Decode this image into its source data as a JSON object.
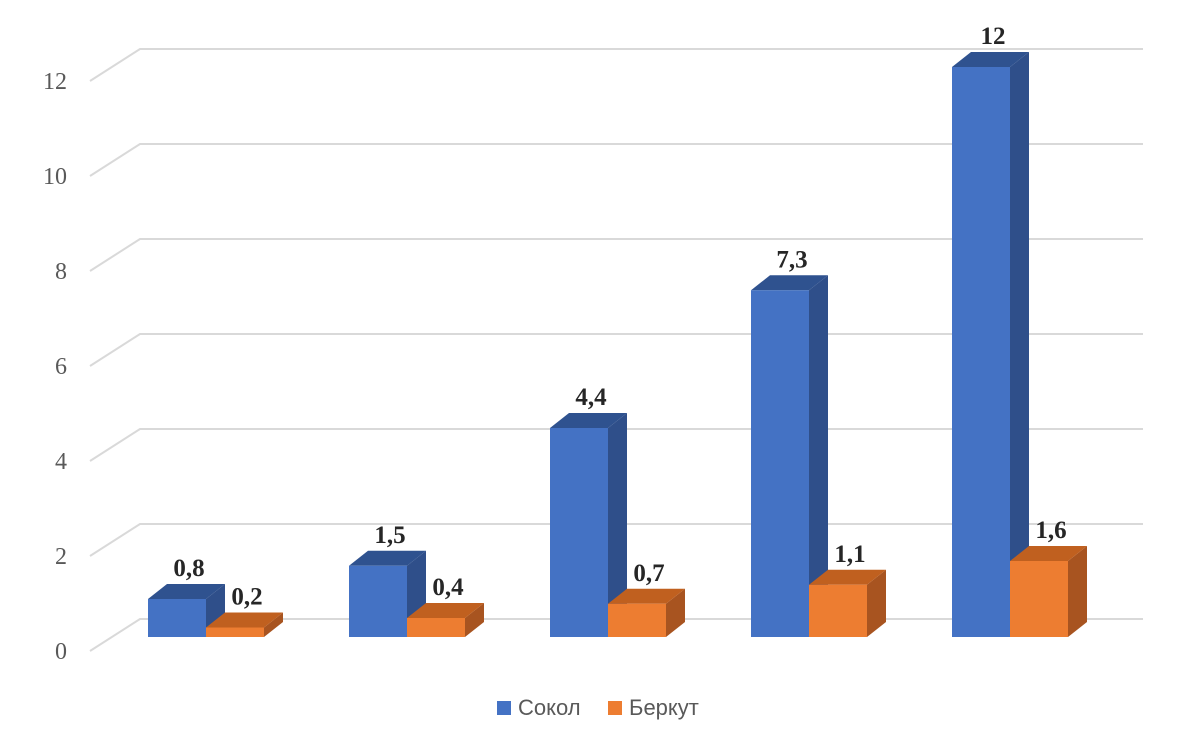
{
  "chart_data": {
    "type": "bar",
    "three_d": true,
    "categories": [
      "",
      "",
      "",
      "",
      ""
    ],
    "series": [
      {
        "name": "Сокол",
        "values": [
          0.8,
          1.5,
          4.4,
          7.3,
          12
        ],
        "labels": [
          "0,8",
          "1,5",
          "4,4",
          "7,3",
          "12"
        ],
        "color": "#4472C4",
        "side_color": "#2F4F8A",
        "top_color": "#2F528F"
      },
      {
        "name": "Беркут",
        "values": [
          0.2,
          0.4,
          0.7,
          1.1,
          1.6
        ],
        "labels": [
          "0,2",
          "0,4",
          "0,7",
          "1,1",
          "1,6"
        ],
        "color": "#ED7D31",
        "side_color": "#A85420",
        "top_color": "#C0601F"
      }
    ],
    "yticks": [
      0,
      2,
      4,
      6,
      8,
      10,
      12
    ],
    "ylim": [
      0,
      12.5
    ],
    "grid": true,
    "legend": "bottom-center",
    "title": "",
    "xlabel": "",
    "ylabel": ""
  }
}
